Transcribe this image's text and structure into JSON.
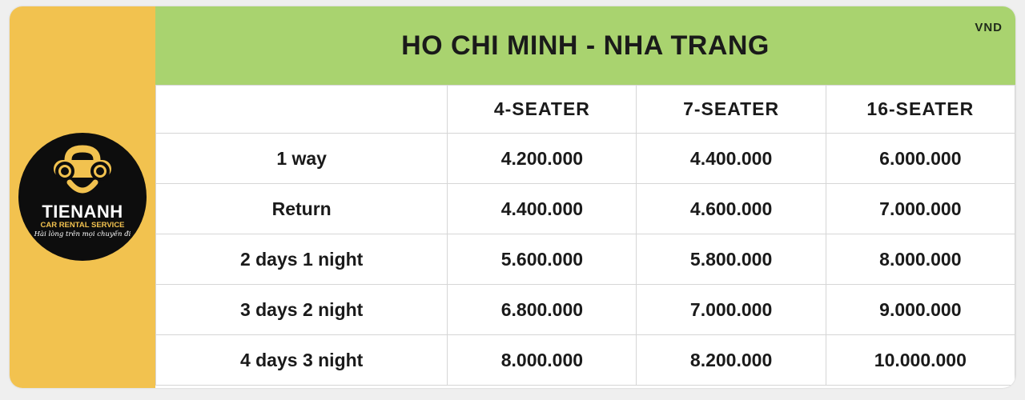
{
  "logo": {
    "name": "TIENANH",
    "tagline": "CAR RENTAL SERVICE",
    "slogan": "Hài lòng trên mọi chuyến đi"
  },
  "header": {
    "title": "HO CHI MINH - NHA TRANG",
    "currency": "VND"
  },
  "colors": {
    "sidebar": "#f2c24f",
    "header": "#a9d36f",
    "logo_bg": "#0d0d0d"
  },
  "table": {
    "columns": [
      "",
      "4-SEATER",
      "7-SEATER",
      "16-SEATER"
    ],
    "rows": [
      {
        "label": "1 way",
        "values": [
          "4.200.000",
          "4.400.000",
          "6.000.000"
        ]
      },
      {
        "label": "Return",
        "values": [
          "4.400.000",
          "4.600.000",
          "7.000.000"
        ]
      },
      {
        "label": "2 days 1 night",
        "values": [
          "5.600.000",
          "5.800.000",
          "8.000.000"
        ]
      },
      {
        "label": "3 days 2 night",
        "values": [
          "6.800.000",
          "7.000.000",
          "9.000.000"
        ]
      },
      {
        "label": "4 days 3 night",
        "values": [
          "8.000.000",
          "8.200.000",
          "10.000.000"
        ]
      }
    ]
  }
}
